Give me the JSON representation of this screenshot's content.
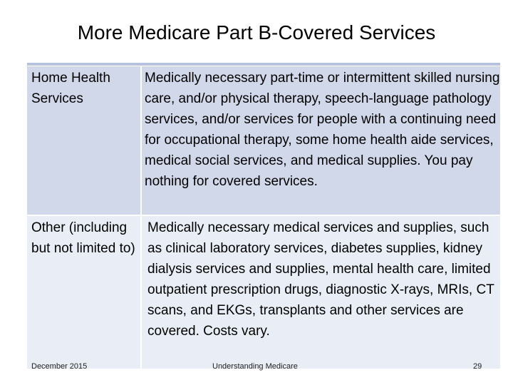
{
  "slide": {
    "title": "More Medicare Part B-Covered Services"
  },
  "table": {
    "rows": [
      {
        "label": "Home Health Services",
        "description": "Medically necessary part-time or intermittent skilled nursing care, and/or physical therapy, speech-language pathology services, and/or services for people with a continuing need for occupational therapy, some home health aide services, medical social services, and medical supplies. You pay nothing for covered services."
      },
      {
        "label": "Other (including but not limited to)",
        "description": "Medically necessary medical services and supplies, such as clinical laboratory services, diabetes supplies, kidney dialysis services and supplies, mental health care, limited outpatient prescription drugs, diagnostic X-rays, MRIs, CT scans, and EKGs, transplants and other services are covered. Costs vary."
      }
    ]
  },
  "footer": {
    "date": "December 2015",
    "center": "Understanding Medicare",
    "page_number": "29"
  },
  "colors": {
    "row1_bg": "#d1d8ea",
    "row2_bg": "#e9edf5",
    "accent": "#8ea0cc"
  }
}
